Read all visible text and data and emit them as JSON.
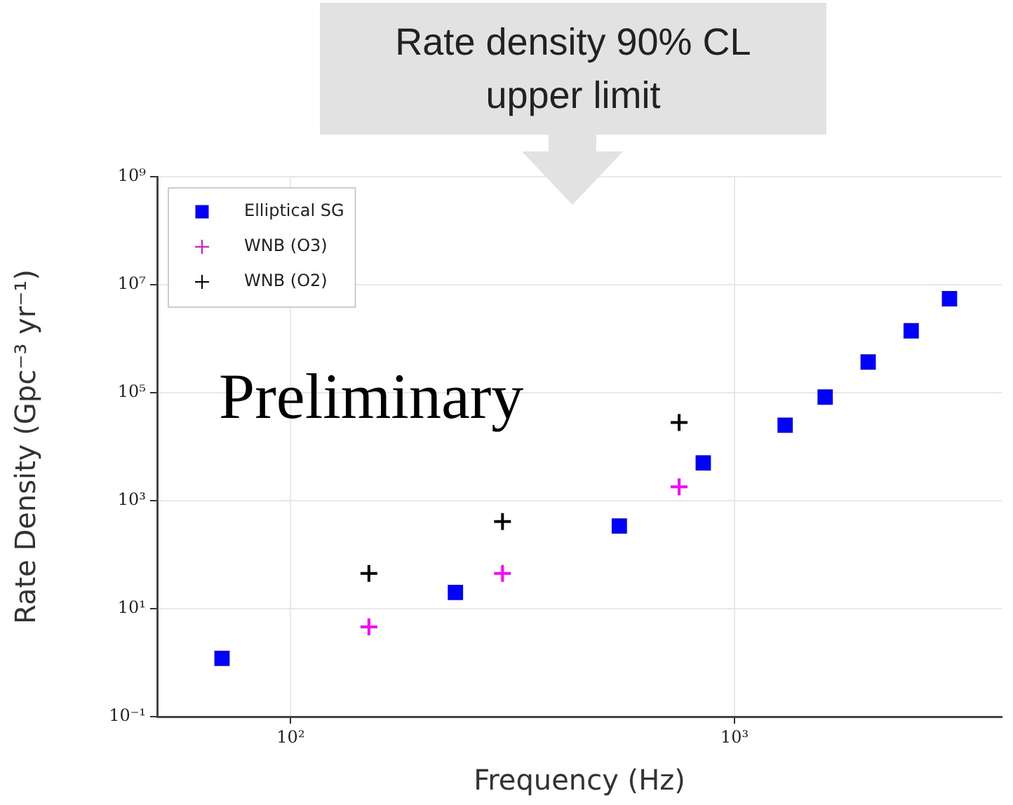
{
  "chart_data": {
    "type": "scatter",
    "xlabel": "Frequency (Hz)",
    "ylabel": "Rate Density (Gpc⁻³ yr⁻¹)",
    "annotations": [
      "Rate density 90% CL upper limit",
      "Preliminary"
    ],
    "log": "xy",
    "grid": true,
    "legend": "top left",
    "xlim": [
      50,
      4000
    ],
    "xticks": [
      {
        "value": 100,
        "label": "10²"
      },
      {
        "value": 1000,
        "label": "10³"
      }
    ],
    "ylim": [
      0.1,
      1000000000
    ],
    "yticks": [
      {
        "value": 0.1,
        "label": "10⁻¹"
      },
      {
        "value": 10,
        "label": "10¹"
      },
      {
        "value": 1000,
        "label": "10³"
      },
      {
        "value": 100000,
        "label": "10⁵"
      },
      {
        "value": 10000000,
        "label": "10⁷"
      },
      {
        "value": 1000000000,
        "label": "10⁹"
      }
    ],
    "series": [
      {
        "name": "Elliptical SG",
        "color": "#0000ff",
        "marker": "square",
        "x": [
          70,
          235,
          550,
          850,
          1300,
          1600,
          2000,
          2500,
          3050
        ],
        "values": [
          1.2,
          20,
          340,
          5000,
          25000,
          83000,
          370000,
          1400000,
          5500000
        ]
      },
      {
        "name": "WNB (O3)",
        "color": "#ff00ff",
        "marker": "cross",
        "x": [
          150,
          300,
          750
        ],
        "values": [
          4.6,
          45,
          1800
        ]
      },
      {
        "name": "WNB (O2)",
        "color": "#000000",
        "marker": "cross",
        "x": [
          150,
          300,
          750
        ],
        "values": [
          45,
          410,
          28000
        ]
      }
    ]
  }
}
